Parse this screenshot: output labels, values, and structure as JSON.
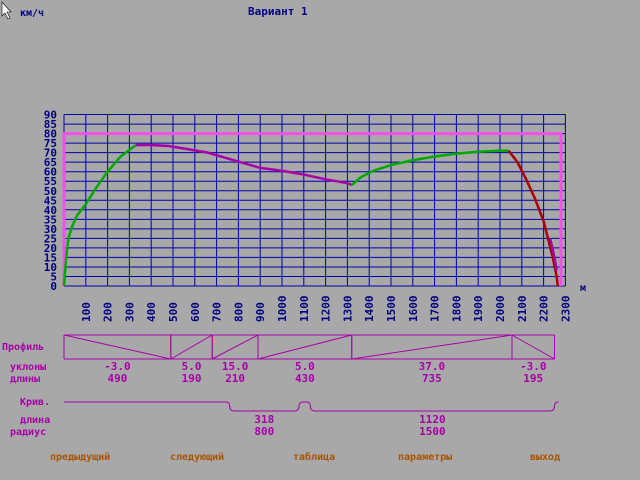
{
  "title": "Вариант 1",
  "chart_data": {
    "type": "line",
    "title": "Вариант 1",
    "ylabel": "км/ч",
    "xlabel": "м",
    "ylim": [
      0,
      90
    ],
    "xlim": [
      0,
      2300
    ],
    "grid": true,
    "y_ticks": [
      "0",
      "5",
      "10",
      "15",
      "20",
      "25",
      "30",
      "35",
      "40",
      "45",
      "50",
      "55",
      "60",
      "65",
      "70",
      "75",
      "80",
      "85",
      "90"
    ],
    "x_ticks": [
      "100",
      "200",
      "300",
      "400",
      "500",
      "600",
      "700",
      "800",
      "900",
      "1000",
      "1100",
      "1200",
      "1300",
      "1400",
      "1500",
      "1600",
      "1700",
      "1800",
      "1900",
      "2000",
      "2100",
      "2200",
      "2300"
    ],
    "speed_limit": {
      "value": 80,
      "x_start": 0,
      "x_end": 2280,
      "color": "#f050f0"
    },
    "series": [
      {
        "color": "#00a800",
        "points": [
          [
            0,
            0
          ],
          [
            10,
            15
          ],
          [
            20,
            25
          ],
          [
            40,
            32
          ],
          [
            60,
            37
          ],
          [
            100,
            43
          ],
          [
            150,
            52
          ],
          [
            200,
            60
          ],
          [
            260,
            68
          ],
          [
            330,
            74
          ]
        ]
      },
      {
        "color": "#a800a8",
        "points": [
          [
            330,
            74
          ],
          [
            400,
            74
          ],
          [
            480,
            73.5
          ],
          [
            560,
            72
          ],
          [
            660,
            70
          ],
          [
            780,
            66
          ],
          [
            900,
            62
          ],
          [
            1000,
            60.5
          ],
          [
            1100,
            58.5
          ],
          [
            1200,
            56
          ],
          [
            1300,
            54
          ],
          [
            1320,
            53
          ]
        ]
      },
      {
        "color": "#00a800",
        "points": [
          [
            1320,
            53
          ],
          [
            1360,
            57
          ],
          [
            1420,
            60.5
          ],
          [
            1500,
            63.5
          ],
          [
            1600,
            66
          ],
          [
            1700,
            68
          ],
          [
            1800,
            69.5
          ],
          [
            1900,
            70.5
          ],
          [
            2000,
            71
          ],
          [
            2040,
            71
          ]
        ]
      },
      {
        "color": "#a80000",
        "points": [
          [
            2040,
            71
          ],
          [
            2080,
            65
          ],
          [
            2120,
            56
          ],
          [
            2160,
            46
          ],
          [
            2200,
            34
          ],
          [
            2240,
            16
          ],
          [
            2260,
            5
          ],
          [
            2265,
            0
          ]
        ]
      },
      {
        "color": "#a800a8",
        "points": [
          [
            2230,
            25
          ],
          [
            2250,
            15
          ],
          [
            2260,
            8
          ]
        ]
      }
    ]
  },
  "profile": {
    "label": "Профиль",
    "slopes_label": "уклоны",
    "lengths_label": "длины",
    "segments": [
      {
        "x_start": 0,
        "x_end": 490,
        "slope": "-3.0",
        "length": "490"
      },
      {
        "x_start": 490,
        "x_end": 680,
        "slope": "5.0",
        "length": "190"
      },
      {
        "x_start": 680,
        "x_end": 890,
        "slope": "15.0",
        "length": "210"
      },
      {
        "x_start": 890,
        "x_end": 1320,
        "slope": "5.0",
        "length": "430"
      },
      {
        "x_start": 1320,
        "x_end": 2055,
        "slope": "37.0",
        "length": "735"
      },
      {
        "x_start": 2055,
        "x_end": 2250,
        "slope": "-3.0",
        "length": "195"
      }
    ]
  },
  "curves": {
    "label": "Крив.",
    "length_label": "длина",
    "radius_label": "радиус",
    "items": [
      {
        "x_start": 760,
        "x_end": 1078,
        "length": "318",
        "radius": "800"
      },
      {
        "x_start": 1130,
        "x_end": 2250,
        "length": "1120",
        "radius": "1500"
      }
    ]
  },
  "menu": {
    "prev": "предыдущий",
    "next": "следующий",
    "table": "таблица",
    "params": "параметры",
    "exit": "выход"
  },
  "colors": {
    "background": "#a8a8a8",
    "grid": "#0000a8",
    "axis_text": "#000080",
    "profile": "#a800a8",
    "menu_text": "#a85400"
  }
}
